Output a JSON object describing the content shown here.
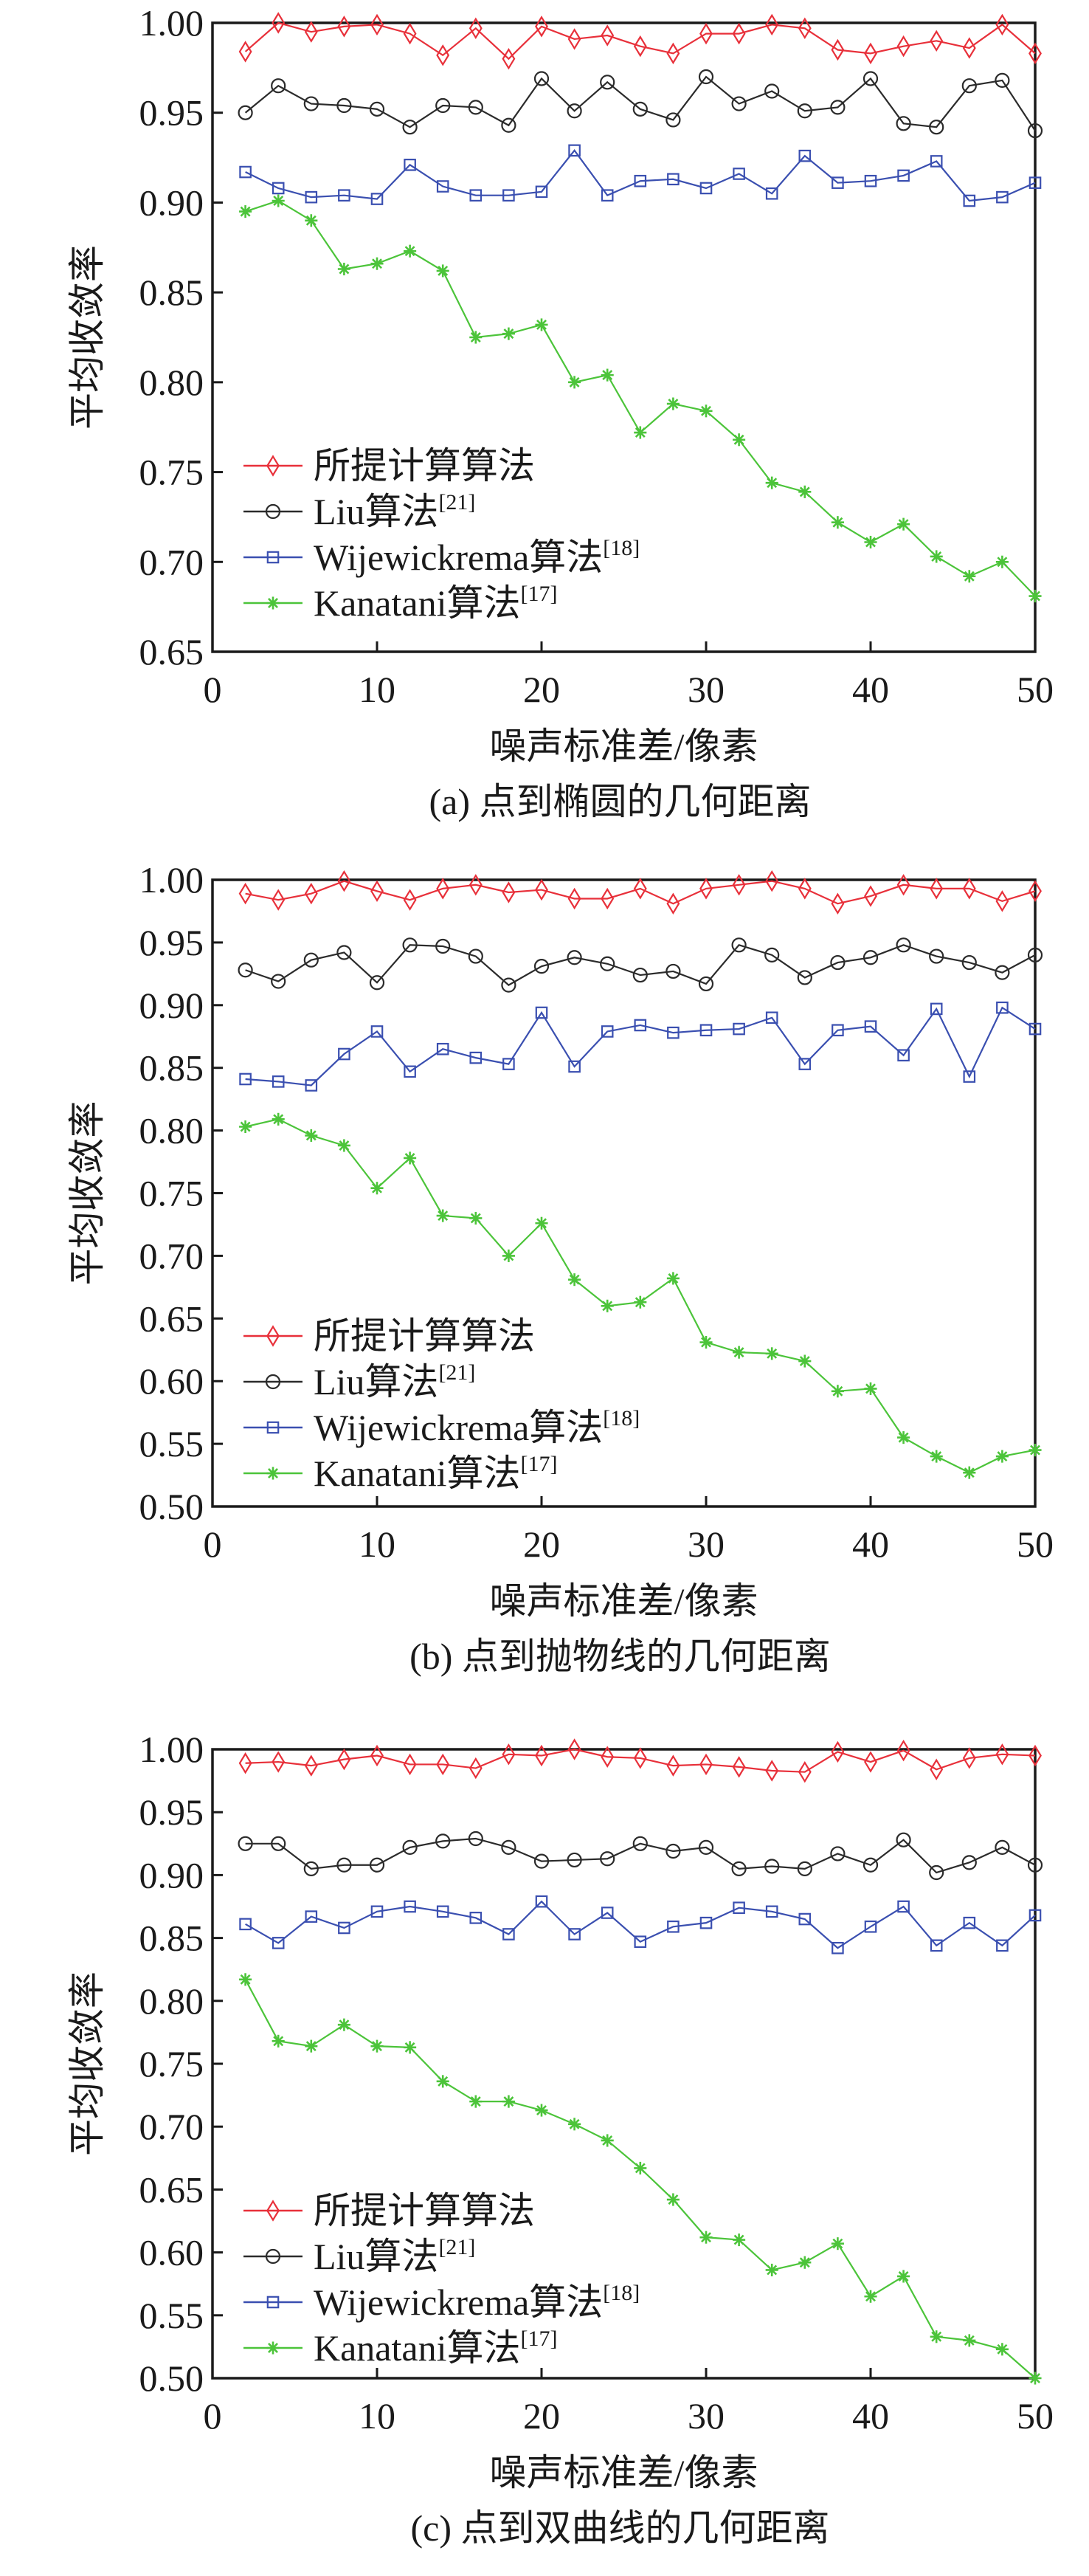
{
  "figure": {
    "legend": [
      {
        "label": "所提计算算法",
        "ref": "",
        "color": "#e8303a",
        "marker": "diamond-icon"
      },
      {
        "label": "Liu算法",
        "ref": "[21]",
        "color": "#2b2b2b",
        "marker": "circle-icon"
      },
      {
        "label": "Wijewickrema算法",
        "ref": "[18]",
        "color": "#3a4fb0",
        "marker": "square-icon"
      },
      {
        "label": "Kanatani算法",
        "ref": "[17]",
        "color": "#4cc43a",
        "marker": "asterisk-icon"
      }
    ]
  },
  "chart_data": [
    {
      "type": "line",
      "caption": "(a) 点到椭圆的几何距离",
      "xlabel": "噪声标准差/像素",
      "ylabel": "平均收敛率",
      "xlim": [
        0,
        50
      ],
      "ylim": [
        0.65,
        1.0
      ],
      "xticks": [
        "0",
        "10",
        "20",
        "30",
        "40",
        "50"
      ],
      "yticks": [
        "0.65",
        "0.70",
        "0.75",
        "0.80",
        "0.85",
        "0.90",
        "0.95",
        "1.00"
      ],
      "legend_position": "lower-left",
      "grid": false,
      "x": [
        2,
        4,
        6,
        8,
        10,
        12,
        14,
        16,
        18,
        20,
        22,
        24,
        26,
        28,
        30,
        32,
        34,
        36,
        38,
        40,
        42,
        44,
        46,
        48,
        50
      ],
      "series": [
        {
          "name": "所提计算算法",
          "values": [
            0.984,
            1.0,
            0.995,
            0.998,
            0.999,
            0.994,
            0.982,
            0.997,
            0.98,
            0.998,
            0.991,
            0.993,
            0.987,
            0.983,
            0.994,
            0.994,
            0.999,
            0.997,
            0.985,
            0.983,
            0.987,
            0.99,
            0.986,
            0.999,
            0.983
          ]
        },
        {
          "name": "Liu算法[21]",
          "values": [
            0.95,
            0.965,
            0.955,
            0.954,
            0.952,
            0.942,
            0.954,
            0.953,
            0.943,
            0.969,
            0.951,
            0.967,
            0.952,
            0.946,
            0.97,
            0.955,
            0.962,
            0.951,
            0.953,
            0.969,
            0.944,
            0.942,
            0.965,
            0.968,
            0.94
          ]
        },
        {
          "name": "Wijewickrema算法[18]",
          "values": [
            0.917,
            0.908,
            0.903,
            0.904,
            0.902,
            0.921,
            0.909,
            0.904,
            0.904,
            0.906,
            0.929,
            0.904,
            0.912,
            0.913,
            0.908,
            0.916,
            0.905,
            0.926,
            0.911,
            0.912,
            0.915,
            0.923,
            0.901,
            0.903,
            0.911
          ]
        },
        {
          "name": "Kanatani算法[17]",
          "values": [
            0.895,
            0.901,
            0.89,
            0.863,
            0.866,
            0.873,
            0.862,
            0.825,
            0.827,
            0.832,
            0.8,
            0.804,
            0.772,
            0.788,
            0.784,
            0.768,
            0.744,
            0.739,
            0.722,
            0.711,
            0.721,
            0.703,
            0.692,
            0.7,
            0.681
          ]
        }
      ]
    },
    {
      "type": "line",
      "caption": "(b) 点到抛物线的几何距离",
      "xlabel": "噪声标准差/像素",
      "ylabel": "平均收敛率",
      "xlim": [
        0,
        50
      ],
      "ylim": [
        0.5,
        1.0
      ],
      "xticks": [
        "0",
        "10",
        "20",
        "30",
        "40",
        "50"
      ],
      "yticks": [
        "0.50",
        "0.55",
        "0.60",
        "0.65",
        "0.70",
        "0.75",
        "0.80",
        "0.85",
        "0.90",
        "0.95",
        "1.00"
      ],
      "legend_position": "lower-left",
      "grid": false,
      "x": [
        2,
        4,
        6,
        8,
        10,
        12,
        14,
        16,
        18,
        20,
        22,
        24,
        26,
        28,
        30,
        32,
        34,
        36,
        38,
        40,
        42,
        44,
        46,
        48,
        50
      ],
      "series": [
        {
          "name": "所提计算算法",
          "values": [
            0.989,
            0.984,
            0.989,
            0.999,
            0.991,
            0.984,
            0.993,
            0.996,
            0.99,
            0.992,
            0.985,
            0.985,
            0.993,
            0.981,
            0.993,
            0.996,
            0.999,
            0.993,
            0.981,
            0.987,
            0.996,
            0.993,
            0.993,
            0.983,
            0.991
          ]
        },
        {
          "name": "Liu算法[21]",
          "values": [
            0.928,
            0.919,
            0.936,
            0.942,
            0.918,
            0.948,
            0.947,
            0.939,
            0.916,
            0.931,
            0.938,
            0.933,
            0.924,
            0.927,
            0.917,
            0.948,
            0.94,
            0.922,
            0.934,
            0.938,
            0.948,
            0.939,
            0.934,
            0.926,
            0.94
          ]
        },
        {
          "name": "Wijewickrema算法[18]",
          "values": [
            0.841,
            0.839,
            0.836,
            0.861,
            0.879,
            0.847,
            0.865,
            0.858,
            0.853,
            0.894,
            0.851,
            0.879,
            0.884,
            0.878,
            0.88,
            0.881,
            0.89,
            0.853,
            0.88,
            0.883,
            0.86,
            0.897,
            0.843,
            0.898,
            0.881
          ]
        },
        {
          "name": "Kanatani算法[17]",
          "values": [
            0.803,
            0.809,
            0.796,
            0.788,
            0.754,
            0.778,
            0.732,
            0.73,
            0.7,
            0.726,
            0.681,
            0.66,
            0.663,
            0.682,
            0.631,
            0.623,
            0.622,
            0.616,
            0.592,
            0.594,
            0.555,
            0.54,
            0.527,
            0.54,
            0.545
          ]
        }
      ]
    },
    {
      "type": "line",
      "caption": "(c) 点到双曲线的几何距离",
      "xlabel": "噪声标准差/像素",
      "ylabel": "平均收敛率",
      "xlim": [
        0,
        50
      ],
      "ylim": [
        0.5,
        1.0
      ],
      "xticks": [
        "0",
        "10",
        "20",
        "30",
        "40",
        "50"
      ],
      "yticks": [
        "0.50",
        "0.55",
        "0.60",
        "0.65",
        "0.70",
        "0.75",
        "0.80",
        "0.85",
        "0.90",
        "0.95",
        "1.00"
      ],
      "legend_position": "lower-left",
      "grid": false,
      "x": [
        2,
        4,
        6,
        8,
        10,
        12,
        14,
        16,
        18,
        20,
        22,
        24,
        26,
        28,
        30,
        32,
        34,
        36,
        38,
        40,
        42,
        44,
        46,
        48,
        50
      ],
      "series": [
        {
          "name": "所提计算算法",
          "values": [
            0.989,
            0.99,
            0.987,
            0.992,
            0.995,
            0.988,
            0.988,
            0.985,
            0.996,
            0.995,
            1.0,
            0.994,
            0.993,
            0.987,
            0.988,
            0.986,
            0.983,
            0.982,
            0.998,
            0.99,
            0.999,
            0.984,
            0.993,
            0.996,
            0.995
          ]
        },
        {
          "name": "Liu算法[21]",
          "values": [
            0.925,
            0.925,
            0.905,
            0.908,
            0.908,
            0.922,
            0.927,
            0.929,
            0.922,
            0.911,
            0.912,
            0.913,
            0.925,
            0.919,
            0.922,
            0.905,
            0.907,
            0.905,
            0.917,
            0.908,
            0.928,
            0.902,
            0.91,
            0.922,
            0.908
          ]
        },
        {
          "name": "Wijewickrema算法[18]",
          "values": [
            0.861,
            0.846,
            0.867,
            0.858,
            0.871,
            0.875,
            0.871,
            0.866,
            0.853,
            0.879,
            0.853,
            0.87,
            0.847,
            0.859,
            0.862,
            0.874,
            0.871,
            0.865,
            0.842,
            0.859,
            0.875,
            0.844,
            0.862,
            0.844,
            0.868
          ]
        },
        {
          "name": "Kanatani算法[17]",
          "values": [
            0.817,
            0.768,
            0.764,
            0.781,
            0.764,
            0.763,
            0.736,
            0.72,
            0.72,
            0.713,
            0.702,
            0.689,
            0.667,
            0.642,
            0.612,
            0.61,
            0.586,
            0.592,
            0.607,
            0.565,
            0.581,
            0.533,
            0.53,
            0.523,
            0.5
          ]
        }
      ]
    }
  ]
}
